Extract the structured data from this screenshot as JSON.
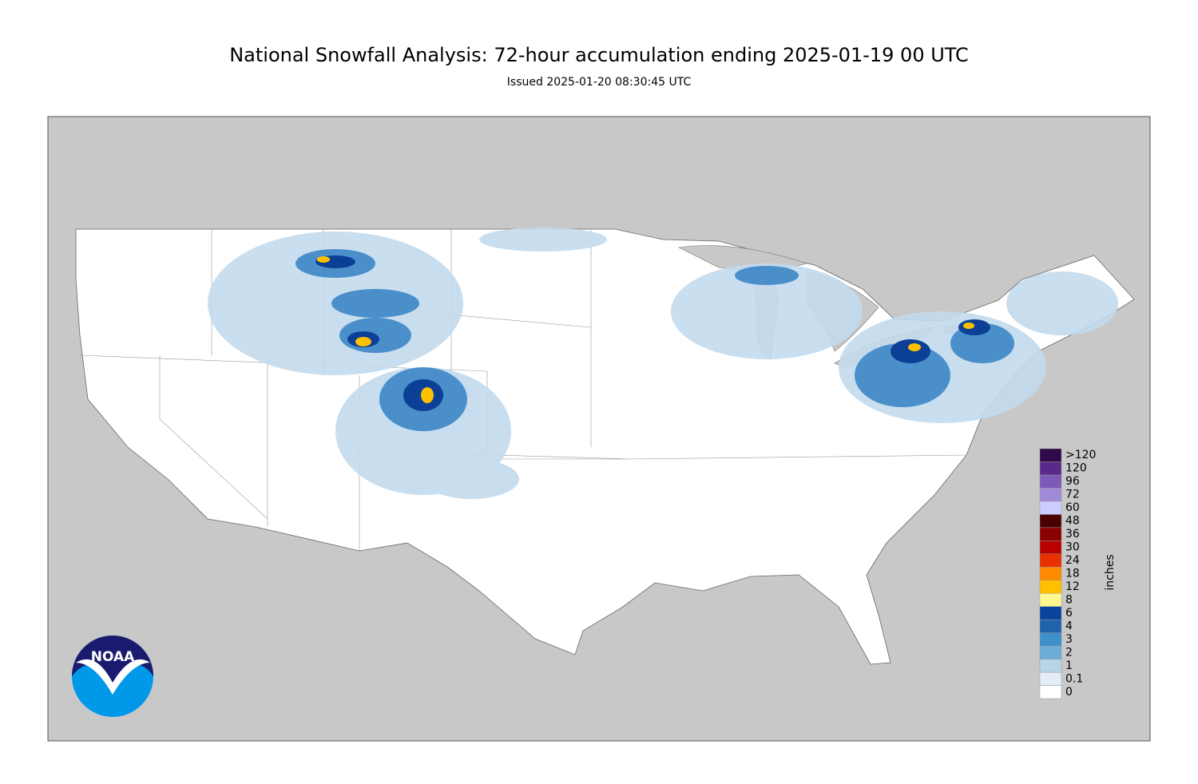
{
  "header": {
    "title": "National Snowfall Analysis: 72-hour accumulation ending 2025-01-19 00 UTC",
    "subtitle": "Issued 2025-01-20 08:30:45 UTC"
  },
  "logo": {
    "text": "NOAA"
  },
  "legend": {
    "unit": "inches",
    "labels": [
      "0",
      "0.1",
      "1",
      "2",
      "3",
      "4",
      "6",
      "8",
      "12",
      "18",
      "24",
      "30",
      "36",
      "48",
      "60",
      "72",
      "96",
      "120",
      ">120"
    ],
    "colors": [
      "#ffffff",
      "#e4edf7",
      "#b8d4e8",
      "#6aaed6",
      "#3f8fcb",
      "#1f63ad",
      "#08449b",
      "#fff890",
      "#ffc000",
      "#ff8a00",
      "#e83000",
      "#b80000",
      "#880000",
      "#4a0000",
      "#ccccff",
      "#a08ad8",
      "#7d5ab8",
      "#5a2a8a",
      "#2e0a48"
    ]
  }
}
